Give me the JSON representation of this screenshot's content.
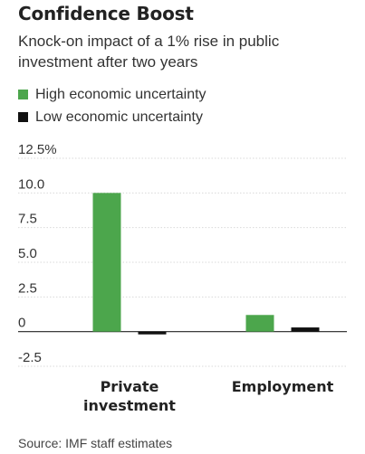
{
  "header": {
    "title": "Confidence Boost",
    "subtitle": "Knock-on impact of a 1% rise in public investment after two years"
  },
  "legend": [
    {
      "label": "High economic uncertainty",
      "color": "#4ca64c"
    },
    {
      "label": "Low economic uncertainty",
      "color": "#111111"
    }
  ],
  "footer": {
    "source": "Source: IMF staff estimates"
  },
  "chart_data": {
    "type": "bar",
    "categories": [
      "Private investment",
      "Employment"
    ],
    "series": [
      {
        "name": "High economic uncertainty",
        "values": [
          10.0,
          1.2
        ],
        "color": "#4ca64c"
      },
      {
        "name": "Low economic uncertainty",
        "values": [
          -0.2,
          0.3
        ],
        "color": "#111111"
      }
    ],
    "title": "Confidence Boost",
    "subtitle": "Knock-on impact of a 1% rise in public investment after two years",
    "xlabel": "",
    "ylabel": "",
    "ylim": [
      -2.5,
      12.5
    ],
    "yticks": [
      {
        "value": 12.5,
        "label": "12.5%"
      },
      {
        "value": 10.0,
        "label": "10.0"
      },
      {
        "value": 7.5,
        "label": "7.5"
      },
      {
        "value": 5.0,
        "label": "5.0"
      },
      {
        "value": 2.5,
        "label": "2.5"
      },
      {
        "value": 0,
        "label": "0"
      },
      {
        "value": -2.5,
        "label": "-2.5"
      }
    ],
    "grid": true,
    "legend_position": "top-left"
  }
}
